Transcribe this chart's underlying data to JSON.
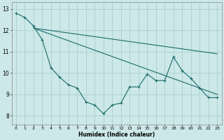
{
  "title": "",
  "xlabel": "Humidex (Indice chaleur)",
  "xlim": [
    -0.5,
    23.5
  ],
  "ylim": [
    7.6,
    13.3
  ],
  "xtick_values": [
    0,
    1,
    2,
    3,
    4,
    5,
    6,
    7,
    8,
    9,
    10,
    11,
    12,
    13,
    14,
    15,
    16,
    17,
    18,
    19,
    20,
    21,
    22,
    23
  ],
  "xtick_labels": [
    "0",
    "1",
    "2",
    "3",
    "4",
    "5",
    "6",
    "7",
    "8",
    "9",
    "10",
    "11",
    "12",
    "13",
    "14",
    "15",
    "16",
    "17",
    "18",
    "19",
    "20",
    "21",
    "22",
    "23"
  ],
  "ytick_values": [
    8,
    9,
    10,
    11,
    12,
    13
  ],
  "ytick_labels": [
    "8",
    "9",
    "10",
    "11",
    "12",
    "13"
  ],
  "bg_color": "#cde8e8",
  "grid_color": "#aacece",
  "line_color": "#1a6b6b",
  "zigzag_x": [
    0,
    1,
    2,
    3,
    4,
    5,
    6,
    7,
    8,
    9,
    10,
    11,
    12,
    13,
    14,
    15,
    16,
    17,
    18,
    19,
    20,
    21,
    22,
    23
  ],
  "zigzag_y": [
    12.8,
    12.6,
    12.2,
    11.55,
    10.25,
    9.8,
    9.45,
    9.3,
    8.65,
    8.5,
    8.1,
    8.5,
    8.6,
    9.35,
    9.35,
    9.95,
    9.65,
    9.65,
    10.75,
    10.1,
    9.75,
    9.3,
    8.85,
    8.85
  ],
  "upper_line_x": [
    2,
    23
  ],
  "upper_line_y": [
    12.1,
    10.9
  ],
  "lower_line_x": [
    2,
    23
  ],
  "lower_line_y": [
    12.1,
    9.0
  ],
  "figsize": [
    3.2,
    2.0
  ],
  "dpi": 100
}
